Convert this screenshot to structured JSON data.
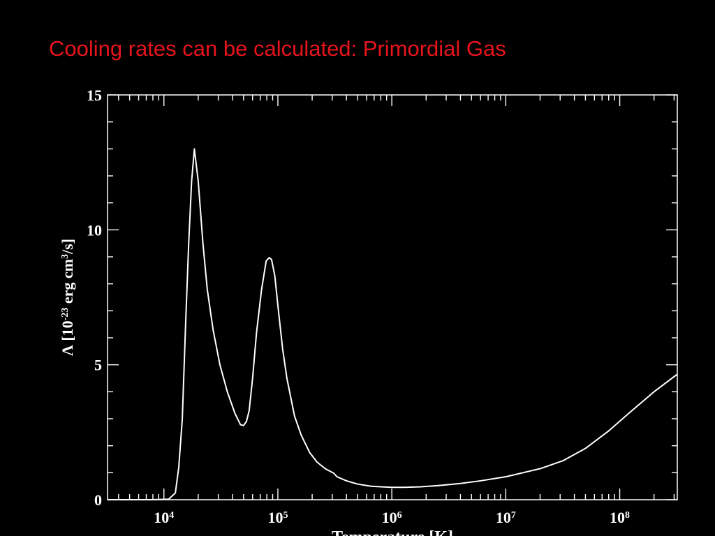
{
  "slide": {
    "title": "Cooling rates can be calculated: Primordial Gas"
  },
  "colors": {
    "background": "#000000",
    "title": "#e8141c",
    "axes": "#ffffff",
    "curve": "#ffffff"
  },
  "chart_data": {
    "type": "line",
    "title": "",
    "xlabel": "Temperature [K]",
    "ylabel_parts": {
      "prefix": "Λ [10",
      "exp": "-23",
      "middle": " erg cm",
      "exp2": "3",
      "suffix": "/s]"
    },
    "x_scale": "log",
    "xlim": [
      3200,
      320000000
    ],
    "ylim": [
      0,
      15
    ],
    "x_ticks": [
      {
        "base": "10",
        "exp": "4",
        "value": 10000
      },
      {
        "base": "10",
        "exp": "5",
        "value": 100000
      },
      {
        "base": "10",
        "exp": "6",
        "value": 1000000
      },
      {
        "base": "10",
        "exp": "7",
        "value": 10000000
      },
      {
        "base": "10",
        "exp": "8",
        "value": 100000000
      }
    ],
    "y_ticks": [
      {
        "label": "0",
        "value": 0
      },
      {
        "label": "5",
        "value": 5
      },
      {
        "label": "10",
        "value": 10
      },
      {
        "label": "15",
        "value": 15
      }
    ],
    "y_minor_step": 1,
    "series": [
      {
        "x": [
          3200,
          5000,
          8000,
          11000,
          12600,
          13500,
          14500,
          15500,
          16500,
          17500,
          18500,
          20000,
          22000,
          24000,
          27000,
          31000,
          36000,
          42000,
          47000,
          50000,
          53000,
          56000,
          60000,
          65000,
          72000,
          79000,
          84000,
          88000,
          94000,
          100000,
          110000,
          120000,
          140000,
          160000,
          190000,
          220000,
          260000,
          310000,
          330000,
          400000,
          500000,
          650000,
          800000,
          1000000,
          1300000,
          1800000,
          2500000,
          4000000,
          6000000,
          10000000,
          20000000,
          32000000,
          50000000,
          80000000,
          120000000,
          200000000,
          320000000
        ],
        "y": [
          0,
          0,
          0,
          0.02,
          0.25,
          1.2,
          3,
          6.5,
          9.5,
          11.8,
          13.0,
          11.8,
          9.5,
          7.8,
          6.3,
          5.0,
          4.0,
          3.2,
          2.78,
          2.75,
          2.9,
          3.3,
          4.5,
          6.2,
          7.8,
          8.85,
          8.97,
          8.9,
          8.3,
          7.2,
          5.6,
          4.5,
          3.1,
          2.4,
          1.75,
          1.4,
          1.15,
          0.98,
          0.85,
          0.7,
          0.58,
          0.5,
          0.48,
          0.46,
          0.46,
          0.48,
          0.52,
          0.6,
          0.7,
          0.85,
          1.15,
          1.45,
          1.9,
          2.55,
          3.2,
          4.0,
          4.65
        ]
      }
    ],
    "grid": false,
    "legend": "none"
  }
}
